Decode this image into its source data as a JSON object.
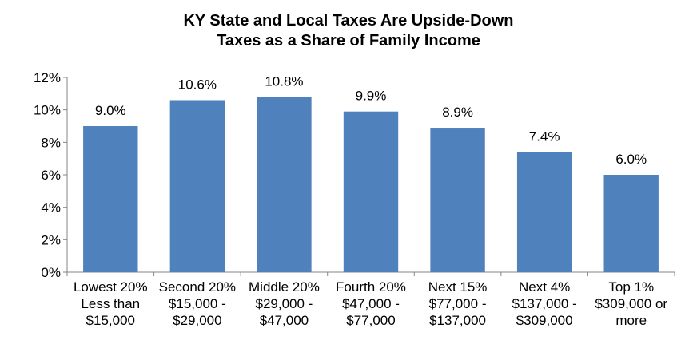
{
  "chart_data": {
    "type": "bar",
    "title": "KY State and Local Taxes Are Upside-Down",
    "subtitle": "Taxes as a Share of Family Income",
    "categories": [
      [
        "Lowest 20%",
        "Less than",
        "$15,000"
      ],
      [
        "Second 20%",
        "$15,000 -",
        "$29,000"
      ],
      [
        "Middle 20%",
        "$29,000 -",
        "$47,000"
      ],
      [
        "Fourth 20%",
        "$47,000 -",
        "$77,000"
      ],
      [
        "Next 15%",
        "$77,000 -",
        "$137,000"
      ],
      [
        "Next 4%",
        "$137,000 -",
        "$309,000"
      ],
      [
        "Top 1%",
        "$309,000 or",
        "more"
      ]
    ],
    "values": [
      9.0,
      10.6,
      10.8,
      9.9,
      8.9,
      7.4,
      6.0
    ],
    "data_labels": [
      "9.0%",
      "10.6%",
      "10.8%",
      "9.9%",
      "8.9%",
      "7.4%",
      "6.0%"
    ],
    "ylim": [
      0,
      12
    ],
    "yticks": [
      0,
      2,
      4,
      6,
      8,
      10,
      12
    ],
    "ytick_labels": [
      "0%",
      "2%",
      "4%",
      "6%",
      "8%",
      "10%",
      "12%"
    ],
    "grid": false,
    "bar_color": "#4F81BD"
  }
}
